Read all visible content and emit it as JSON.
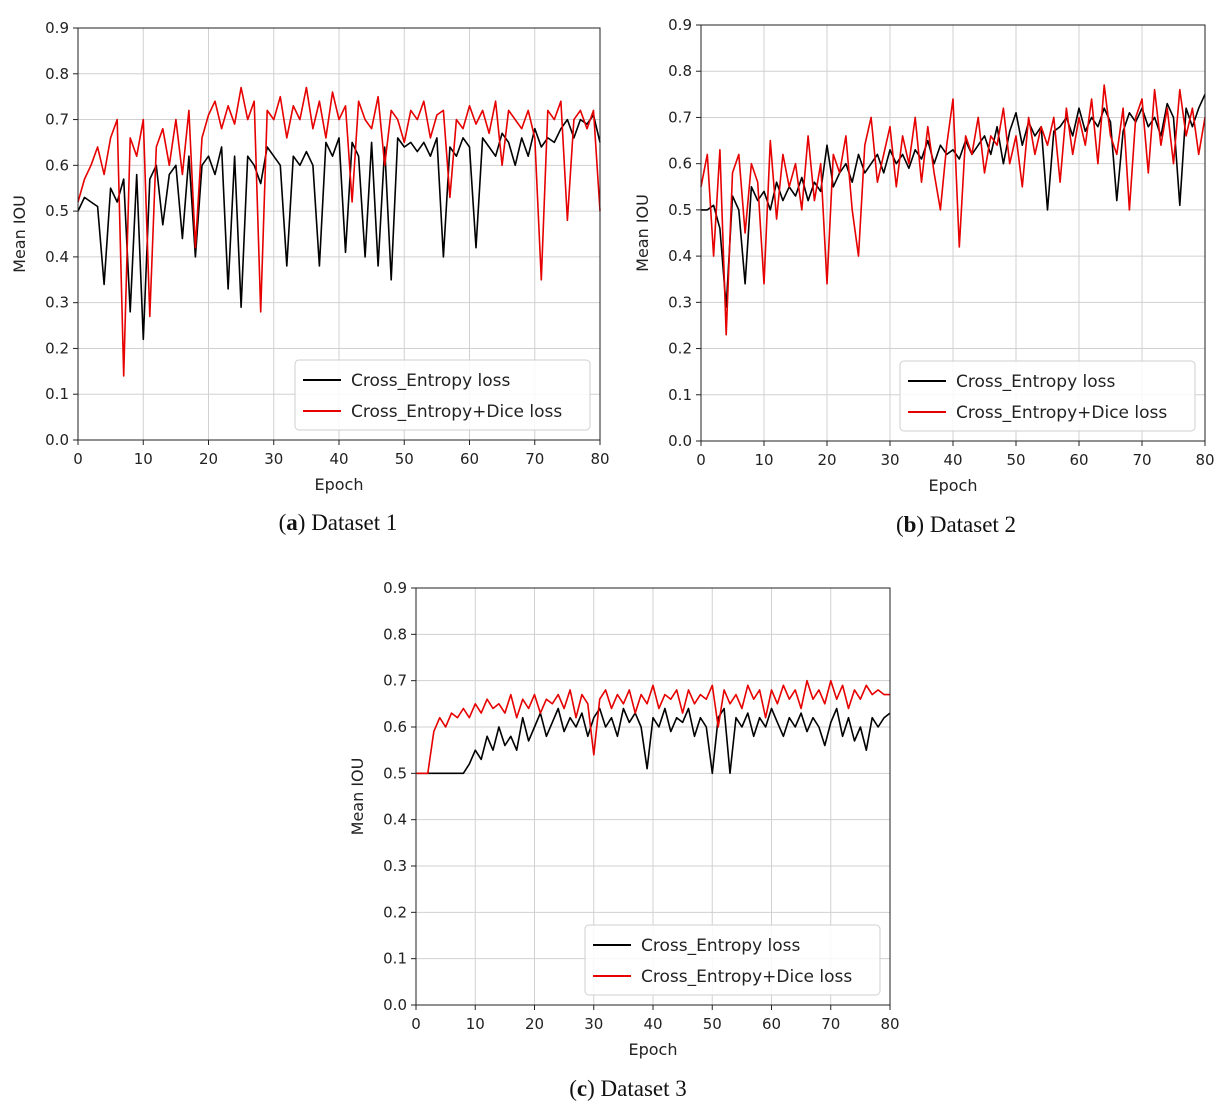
{
  "chart_data": [
    {
      "type": "line",
      "caption_letter": "a",
      "caption_text": "Dataset 1",
      "xlabel": "Epoch",
      "ylabel": "Mean IOU",
      "xlim": [
        0,
        80
      ],
      "ylim": [
        0,
        0.9
      ],
      "xticks": [
        "0",
        "10",
        "20",
        "30",
        "40",
        "50",
        "60",
        "70",
        "80"
      ],
      "yticks": [
        "0.0",
        "0.1",
        "0.2",
        "0.3",
        "0.4",
        "0.5",
        "0.6",
        "0.7",
        "0.8",
        "0.9"
      ],
      "grid": true,
      "legend_position": "lower-right",
      "series": [
        {
          "name": "Cross_Entropy loss",
          "color": "#000000",
          "x": [
            0,
            1,
            2,
            3,
            4,
            5,
            6,
            7,
            8,
            9,
            10,
            11,
            12,
            13,
            14,
            15,
            16,
            17,
            18,
            19,
            20,
            21,
            22,
            23,
            24,
            25,
            26,
            27,
            28,
            29,
            30,
            31,
            32,
            33,
            34,
            35,
            36,
            37,
            38,
            39,
            40,
            41,
            42,
            43,
            44,
            45,
            46,
            47,
            48,
            49,
            50,
            51,
            52,
            53,
            54,
            55,
            56,
            57,
            58,
            59,
            60,
            61,
            62,
            63,
            64,
            65,
            66,
            67,
            68,
            69,
            70,
            71,
            72,
            73,
            74,
            75,
            76,
            77,
            78,
            79,
            80
          ],
          "y": [
            0.5,
            0.53,
            0.52,
            0.51,
            0.34,
            0.55,
            0.52,
            0.57,
            0.28,
            0.58,
            0.22,
            0.57,
            0.6,
            0.47,
            0.58,
            0.6,
            0.44,
            0.62,
            0.4,
            0.6,
            0.62,
            0.58,
            0.64,
            0.33,
            0.62,
            0.29,
            0.62,
            0.6,
            0.56,
            0.64,
            0.62,
            0.6,
            0.38,
            0.62,
            0.6,
            0.63,
            0.6,
            0.38,
            0.65,
            0.62,
            0.66,
            0.41,
            0.65,
            0.62,
            0.4,
            0.65,
            0.38,
            0.64,
            0.35,
            0.66,
            0.64,
            0.65,
            0.63,
            0.65,
            0.62,
            0.66,
            0.4,
            0.64,
            0.62,
            0.66,
            0.64,
            0.42,
            0.66,
            0.64,
            0.62,
            0.67,
            0.65,
            0.6,
            0.66,
            0.62,
            0.68,
            0.64,
            0.66,
            0.65,
            0.68,
            0.7,
            0.66,
            0.7,
            0.69,
            0.71,
            0.65
          ]
        },
        {
          "name": "Cross_Entropy+Dice loss",
          "color": "#e60000",
          "x": [
            0,
            1,
            2,
            3,
            4,
            5,
            6,
            7,
            8,
            9,
            10,
            11,
            12,
            13,
            14,
            15,
            16,
            17,
            18,
            19,
            20,
            21,
            22,
            23,
            24,
            25,
            26,
            27,
            28,
            29,
            30,
            31,
            32,
            33,
            34,
            35,
            36,
            37,
            38,
            39,
            40,
            41,
            42,
            43,
            44,
            45,
            46,
            47,
            48,
            49,
            50,
            51,
            52,
            53,
            54,
            55,
            56,
            57,
            58,
            59,
            60,
            61,
            62,
            63,
            64,
            65,
            66,
            67,
            68,
            69,
            70,
            71,
            72,
            73,
            74,
            75,
            76,
            77,
            78,
            79,
            80
          ],
          "y": [
            0.52,
            0.57,
            0.6,
            0.64,
            0.58,
            0.66,
            0.7,
            0.14,
            0.66,
            0.62,
            0.7,
            0.27,
            0.64,
            0.68,
            0.6,
            0.7,
            0.58,
            0.72,
            0.42,
            0.66,
            0.71,
            0.74,
            0.68,
            0.73,
            0.69,
            0.77,
            0.7,
            0.74,
            0.28,
            0.72,
            0.7,
            0.75,
            0.66,
            0.73,
            0.7,
            0.77,
            0.68,
            0.74,
            0.66,
            0.76,
            0.7,
            0.73,
            0.52,
            0.74,
            0.7,
            0.68,
            0.75,
            0.6,
            0.72,
            0.7,
            0.65,
            0.72,
            0.7,
            0.74,
            0.66,
            0.71,
            0.72,
            0.53,
            0.7,
            0.68,
            0.73,
            0.69,
            0.72,
            0.67,
            0.74,
            0.6,
            0.72,
            0.7,
            0.68,
            0.72,
            0.66,
            0.35,
            0.72,
            0.7,
            0.74,
            0.48,
            0.7,
            0.72,
            0.68,
            0.72,
            0.5
          ]
        }
      ]
    },
    {
      "type": "line",
      "caption_letter": "b",
      "caption_text": "Dataset 2",
      "xlabel": "Epoch",
      "ylabel": "Mean IOU",
      "xlim": [
        0,
        80
      ],
      "ylim": [
        0,
        0.9
      ],
      "xticks": [
        "0",
        "10",
        "20",
        "30",
        "40",
        "50",
        "60",
        "70",
        "80"
      ],
      "yticks": [
        "0.0",
        "0.1",
        "0.2",
        "0.3",
        "0.4",
        "0.5",
        "0.6",
        "0.7",
        "0.8",
        "0.9"
      ],
      "grid": true,
      "legend_position": "lower-right",
      "series": [
        {
          "name": "Cross_Entropy loss",
          "color": "#000000",
          "x": [
            0,
            1,
            2,
            3,
            4,
            5,
            6,
            7,
            8,
            9,
            10,
            11,
            12,
            13,
            14,
            15,
            16,
            17,
            18,
            19,
            20,
            21,
            22,
            23,
            24,
            25,
            26,
            27,
            28,
            29,
            30,
            31,
            32,
            33,
            34,
            35,
            36,
            37,
            38,
            39,
            40,
            41,
            42,
            43,
            44,
            45,
            46,
            47,
            48,
            49,
            50,
            51,
            52,
            53,
            54,
            55,
            56,
            57,
            58,
            59,
            60,
            61,
            62,
            63,
            64,
            65,
            66,
            67,
            68,
            69,
            70,
            71,
            72,
            73,
            74,
            75,
            76,
            77,
            78,
            79,
            80
          ],
          "y": [
            0.5,
            0.5,
            0.51,
            0.46,
            0.29,
            0.53,
            0.5,
            0.34,
            0.55,
            0.52,
            0.54,
            0.5,
            0.56,
            0.52,
            0.55,
            0.53,
            0.57,
            0.52,
            0.56,
            0.54,
            0.64,
            0.55,
            0.58,
            0.6,
            0.56,
            0.62,
            0.58,
            0.6,
            0.62,
            0.58,
            0.63,
            0.6,
            0.62,
            0.59,
            0.63,
            0.61,
            0.65,
            0.6,
            0.64,
            0.62,
            0.63,
            0.61,
            0.65,
            0.62,
            0.64,
            0.66,
            0.62,
            0.68,
            0.6,
            0.67,
            0.71,
            0.64,
            0.69,
            0.66,
            0.68,
            0.5,
            0.67,
            0.68,
            0.7,
            0.66,
            0.72,
            0.67,
            0.7,
            0.68,
            0.72,
            0.69,
            0.52,
            0.67,
            0.71,
            0.69,
            0.72,
            0.68,
            0.7,
            0.66,
            0.73,
            0.7,
            0.51,
            0.72,
            0.68,
            0.72,
            0.75
          ]
        },
        {
          "name": "Cross_Entropy+Dice loss",
          "color": "#e60000",
          "x": [
            0,
            1,
            2,
            3,
            4,
            5,
            6,
            7,
            8,
            9,
            10,
            11,
            12,
            13,
            14,
            15,
            16,
            17,
            18,
            19,
            20,
            21,
            22,
            23,
            24,
            25,
            26,
            27,
            28,
            29,
            30,
            31,
            32,
            33,
            34,
            35,
            36,
            37,
            38,
            39,
            40,
            41,
            42,
            43,
            44,
            45,
            46,
            47,
            48,
            49,
            50,
            51,
            52,
            53,
            54,
            55,
            56,
            57,
            58,
            59,
            60,
            61,
            62,
            63,
            64,
            65,
            66,
            67,
            68,
            69,
            70,
            71,
            72,
            73,
            74,
            75,
            76,
            77,
            78,
            79,
            80
          ],
          "y": [
            0.55,
            0.62,
            0.4,
            0.63,
            0.23,
            0.58,
            0.62,
            0.45,
            0.6,
            0.56,
            0.34,
            0.65,
            0.48,
            0.62,
            0.55,
            0.6,
            0.5,
            0.66,
            0.52,
            0.6,
            0.34,
            0.62,
            0.58,
            0.66,
            0.5,
            0.4,
            0.64,
            0.7,
            0.56,
            0.62,
            0.68,
            0.55,
            0.66,
            0.6,
            0.7,
            0.56,
            0.68,
            0.58,
            0.5,
            0.64,
            0.74,
            0.42,
            0.66,
            0.62,
            0.7,
            0.58,
            0.66,
            0.64,
            0.72,
            0.6,
            0.66,
            0.55,
            0.7,
            0.62,
            0.68,
            0.64,
            0.7,
            0.56,
            0.72,
            0.62,
            0.7,
            0.64,
            0.74,
            0.6,
            0.77,
            0.66,
            0.62,
            0.72,
            0.5,
            0.7,
            0.74,
            0.58,
            0.76,
            0.64,
            0.72,
            0.6,
            0.76,
            0.66,
            0.72,
            0.62,
            0.7
          ]
        }
      ]
    },
    {
      "type": "line",
      "caption_letter": "c",
      "caption_text": "Dataset 3",
      "xlabel": "Epoch",
      "ylabel": "Mean IOU",
      "xlim": [
        0,
        80
      ],
      "ylim": [
        0,
        0.9
      ],
      "xticks": [
        "0",
        "10",
        "20",
        "30",
        "40",
        "50",
        "60",
        "70",
        "80"
      ],
      "yticks": [
        "0.0",
        "0.1",
        "0.2",
        "0.3",
        "0.4",
        "0.5",
        "0.6",
        "0.7",
        "0.8",
        "0.9"
      ],
      "grid": true,
      "legend_position": "lower-right",
      "series": [
        {
          "name": "Cross_Entropy loss",
          "color": "#000000",
          "x": [
            0,
            1,
            2,
            3,
            4,
            5,
            6,
            7,
            8,
            9,
            10,
            11,
            12,
            13,
            14,
            15,
            16,
            17,
            18,
            19,
            20,
            21,
            22,
            23,
            24,
            25,
            26,
            27,
            28,
            29,
            30,
            31,
            32,
            33,
            34,
            35,
            36,
            37,
            38,
            39,
            40,
            41,
            42,
            43,
            44,
            45,
            46,
            47,
            48,
            49,
            50,
            51,
            52,
            53,
            54,
            55,
            56,
            57,
            58,
            59,
            60,
            61,
            62,
            63,
            64,
            65,
            66,
            67,
            68,
            69,
            70,
            71,
            72,
            73,
            74,
            75,
            76,
            77,
            78,
            79,
            80
          ],
          "y": [
            0.5,
            0.5,
            0.5,
            0.5,
            0.5,
            0.5,
            0.5,
            0.5,
            0.5,
            0.52,
            0.55,
            0.53,
            0.58,
            0.55,
            0.6,
            0.56,
            0.58,
            0.55,
            0.62,
            0.57,
            0.6,
            0.63,
            0.58,
            0.61,
            0.64,
            0.59,
            0.62,
            0.6,
            0.63,
            0.58,
            0.62,
            0.64,
            0.6,
            0.62,
            0.58,
            0.64,
            0.61,
            0.63,
            0.6,
            0.51,
            0.62,
            0.6,
            0.64,
            0.59,
            0.62,
            0.61,
            0.64,
            0.58,
            0.62,
            0.6,
            0.5,
            0.62,
            0.64,
            0.5,
            0.62,
            0.6,
            0.63,
            0.58,
            0.62,
            0.6,
            0.64,
            0.61,
            0.58,
            0.62,
            0.6,
            0.63,
            0.59,
            0.62,
            0.6,
            0.56,
            0.61,
            0.64,
            0.58,
            0.62,
            0.57,
            0.6,
            0.55,
            0.62,
            0.6,
            0.62,
            0.63
          ]
        },
        {
          "name": "Cross_Entropy+Dice loss",
          "color": "#e60000",
          "x": [
            0,
            1,
            2,
            3,
            4,
            5,
            6,
            7,
            8,
            9,
            10,
            11,
            12,
            13,
            14,
            15,
            16,
            17,
            18,
            19,
            20,
            21,
            22,
            23,
            24,
            25,
            26,
            27,
            28,
            29,
            30,
            31,
            32,
            33,
            34,
            35,
            36,
            37,
            38,
            39,
            40,
            41,
            42,
            43,
            44,
            45,
            46,
            47,
            48,
            49,
            50,
            51,
            52,
            53,
            54,
            55,
            56,
            57,
            58,
            59,
            60,
            61,
            62,
            63,
            64,
            65,
            66,
            67,
            68,
            69,
            70,
            71,
            72,
            73,
            74,
            75,
            76,
            77,
            78,
            79,
            80
          ],
          "y": [
            0.5,
            0.5,
            0.5,
            0.59,
            0.62,
            0.6,
            0.63,
            0.62,
            0.64,
            0.62,
            0.65,
            0.63,
            0.66,
            0.64,
            0.65,
            0.63,
            0.67,
            0.62,
            0.66,
            0.64,
            0.67,
            0.63,
            0.66,
            0.65,
            0.67,
            0.64,
            0.68,
            0.62,
            0.67,
            0.65,
            0.54,
            0.66,
            0.68,
            0.64,
            0.67,
            0.65,
            0.68,
            0.63,
            0.67,
            0.65,
            0.69,
            0.64,
            0.67,
            0.66,
            0.68,
            0.63,
            0.68,
            0.65,
            0.67,
            0.66,
            0.69,
            0.6,
            0.68,
            0.65,
            0.67,
            0.64,
            0.69,
            0.66,
            0.68,
            0.62,
            0.68,
            0.65,
            0.69,
            0.66,
            0.68,
            0.64,
            0.7,
            0.66,
            0.68,
            0.65,
            0.7,
            0.66,
            0.69,
            0.64,
            0.68,
            0.66,
            0.69,
            0.67,
            0.68,
            0.67,
            0.67
          ]
        }
      ]
    }
  ]
}
